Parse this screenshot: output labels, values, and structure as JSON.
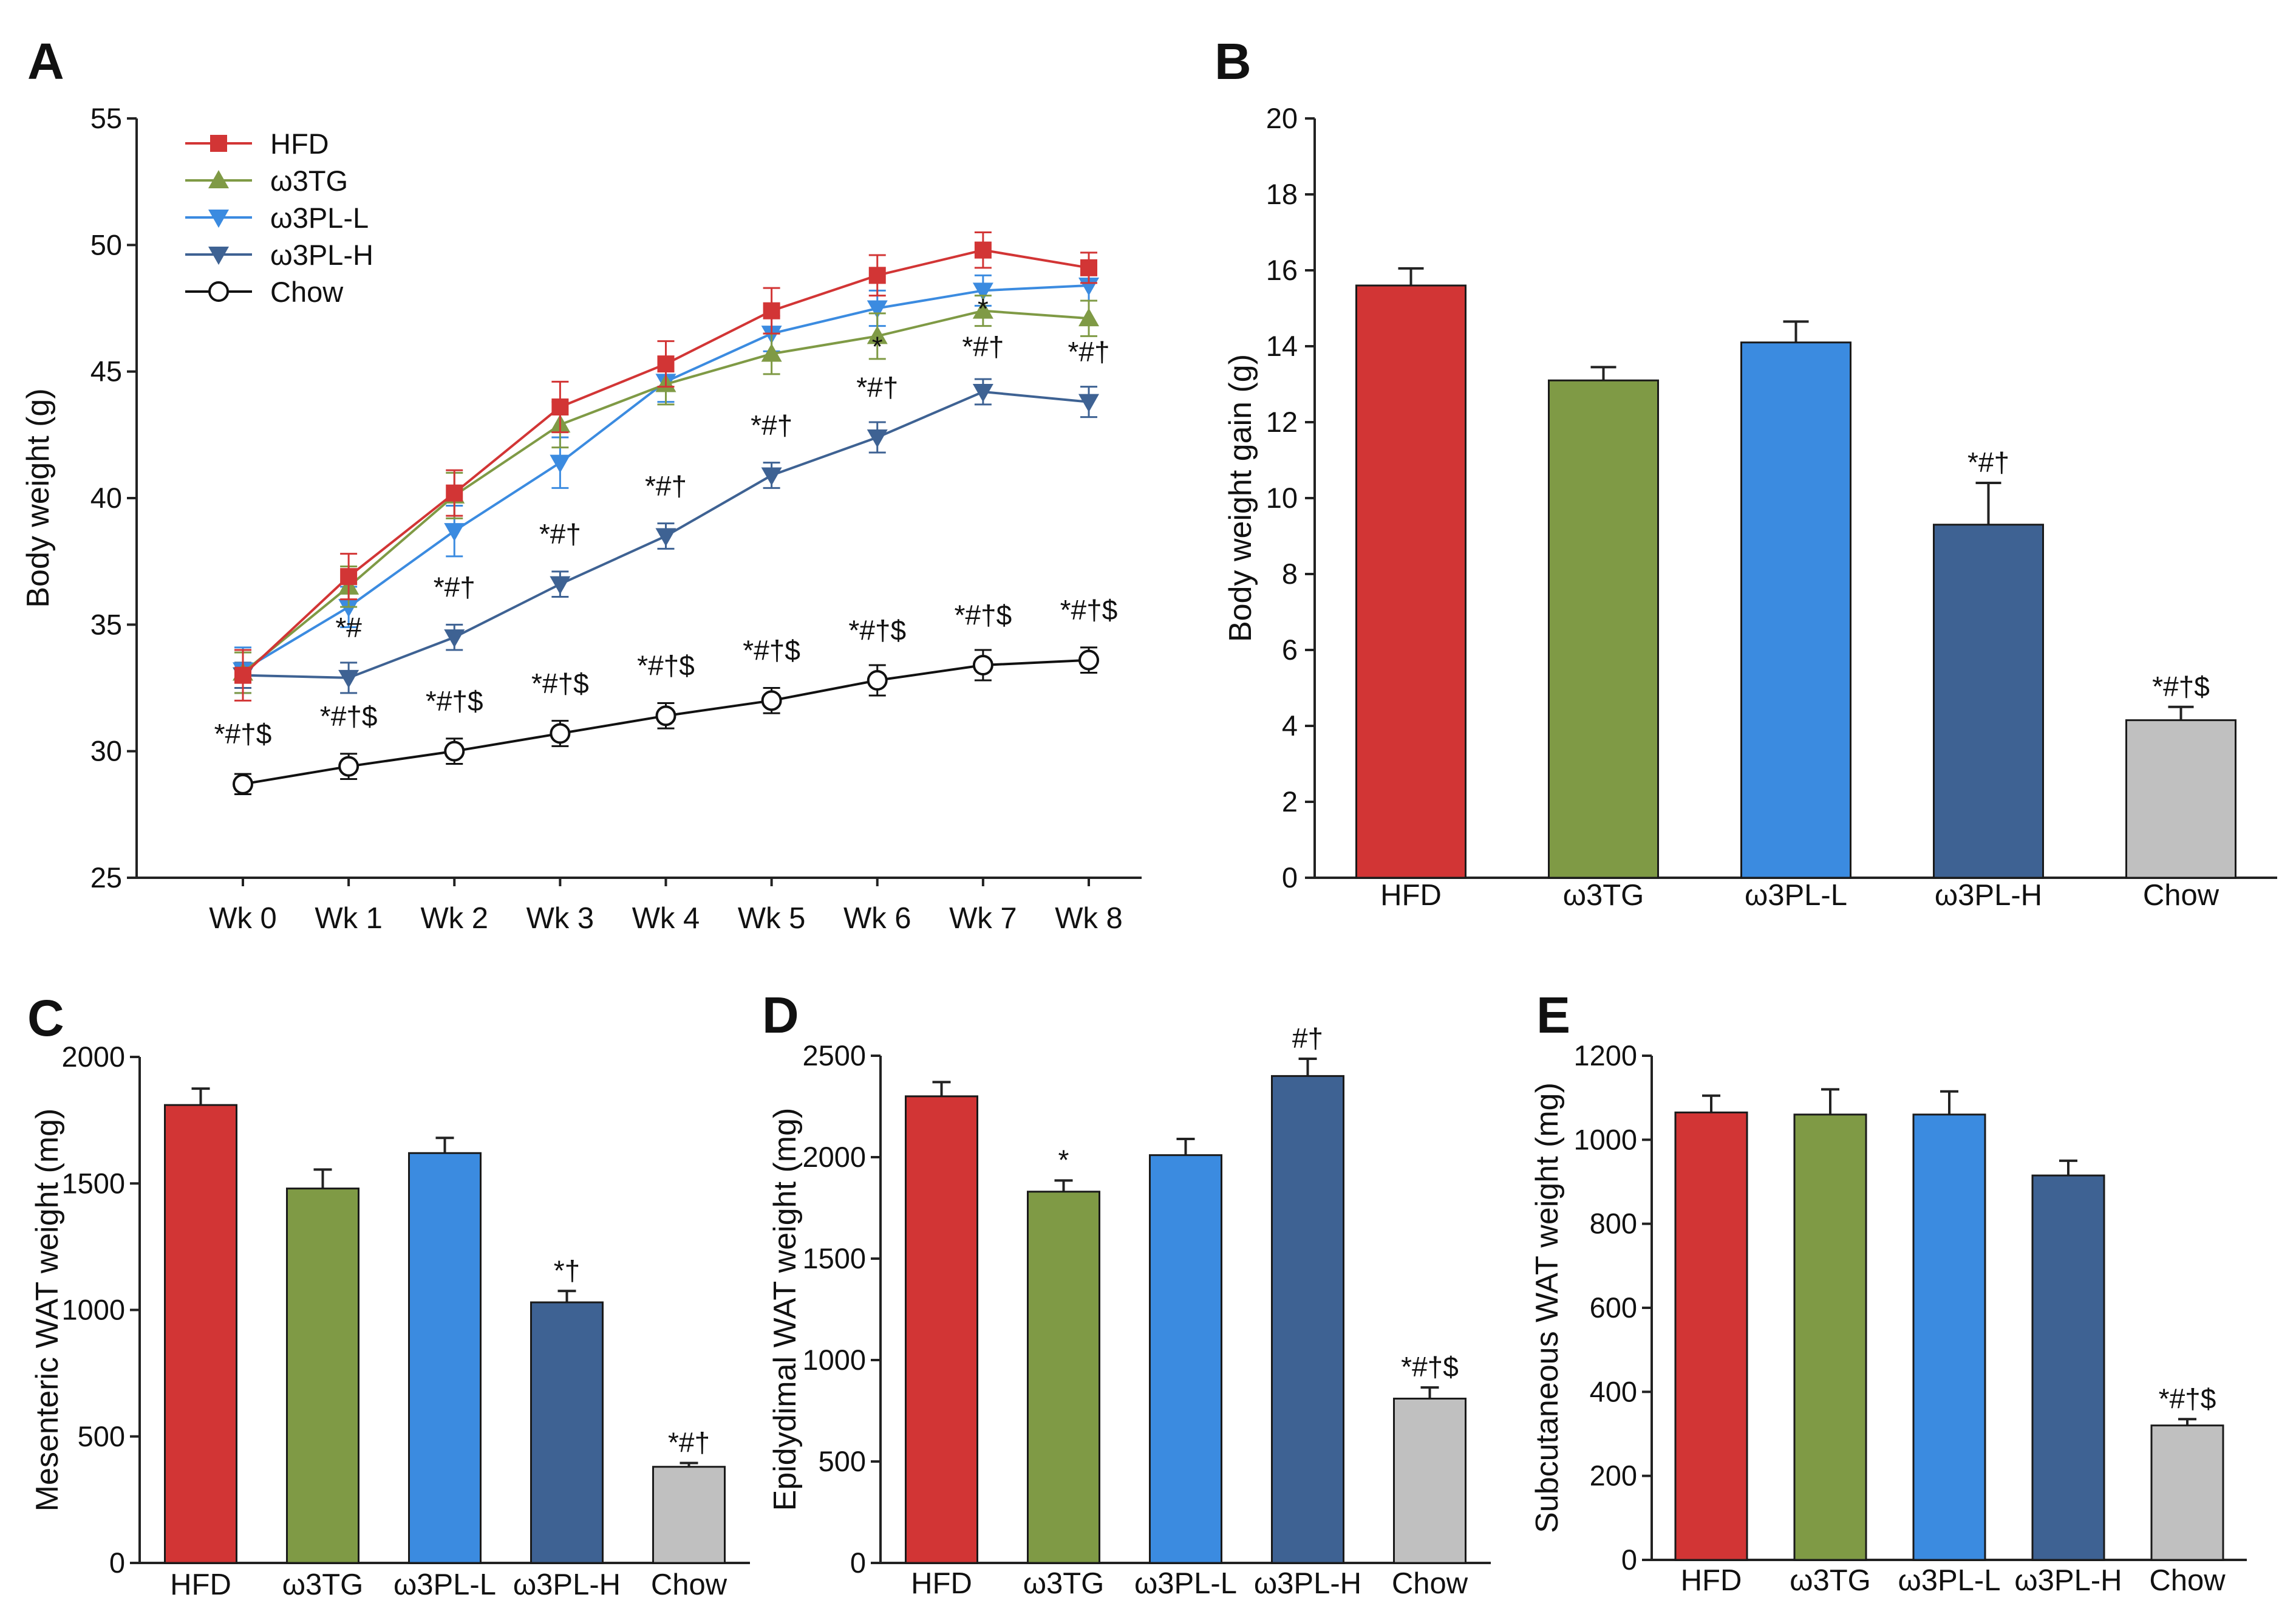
{
  "chart_data": [
    {
      "panel": "A",
      "type": "line",
      "xlabel": "",
      "ylabel": "Body weight (g)",
      "ylim": [
        25,
        55
      ],
      "yticks": [
        "25",
        "30",
        "35",
        "40",
        "45",
        "50",
        "55"
      ],
      "categories": [
        "Wk 0",
        "Wk 1",
        "Wk 2",
        "Wk 3",
        "Wk 4",
        "Wk 5",
        "Wk 6",
        "Wk 7",
        "Wk 8"
      ],
      "legend_position": "top-left",
      "series": [
        {
          "name": "HFD",
          "color": "#d23535",
          "marker": "square",
          "values": [
            33.0,
            36.9,
            40.2,
            43.6,
            45.3,
            47.4,
            48.8,
            49.8,
            49.1
          ],
          "errors": [
            1.0,
            0.9,
            0.9,
            1.0,
            0.9,
            0.9,
            0.8,
            0.7,
            0.6
          ]
        },
        {
          "name": "ω3TG",
          "color": "#7f9a45",
          "marker": "triangle-up",
          "values": [
            33.1,
            36.5,
            40.1,
            42.9,
            44.5,
            45.7,
            46.4,
            47.4,
            47.1
          ],
          "errors": [
            0.8,
            0.8,
            0.9,
            0.9,
            0.8,
            0.8,
            0.9,
            0.6,
            0.7
          ]
        },
        {
          "name": "ω3PL-L",
          "color": "#3b8be0",
          "marker": "triangle-down",
          "values": [
            33.2,
            35.7,
            38.7,
            41.4,
            44.6,
            46.5,
            47.5,
            48.2,
            48.4
          ],
          "errors": [
            0.9,
            0.8,
            1.0,
            1.0,
            0.8,
            0.7,
            0.7,
            0.6,
            0.6
          ]
        },
        {
          "name": "ω3PL-H",
          "color": "#3e6293",
          "marker": "triangle-down",
          "values": [
            33.0,
            32.9,
            34.5,
            36.6,
            38.5,
            40.9,
            42.4,
            44.2,
            43.8
          ],
          "errors": [
            0.5,
            0.6,
            0.5,
            0.5,
            0.5,
            0.5,
            0.6,
            0.5,
            0.6
          ]
        },
        {
          "name": "Chow",
          "color": "#111111",
          "marker": "circle-open",
          "values": [
            28.7,
            29.4,
            30.0,
            30.7,
            31.4,
            32.0,
            32.8,
            33.4,
            33.6
          ],
          "errors": [
            0.4,
            0.5,
            0.5,
            0.5,
            0.5,
            0.5,
            0.6,
            0.6,
            0.5
          ]
        }
      ],
      "annotations": [
        {
          "week": 0,
          "y": 30.3,
          "text": "*#†$"
        },
        {
          "week": 1,
          "y": 31.0,
          "text": "*#†$"
        },
        {
          "week": 2,
          "y": 31.6,
          "text": "*#†$"
        },
        {
          "week": 3,
          "y": 32.3,
          "text": "*#†$"
        },
        {
          "week": 4,
          "y": 33.0,
          "text": "*#†$"
        },
        {
          "week": 5,
          "y": 33.6,
          "text": "*#†$"
        },
        {
          "week": 6,
          "y": 34.4,
          "text": "*#†$"
        },
        {
          "week": 7,
          "y": 35.0,
          "text": "*#†$"
        },
        {
          "week": 8,
          "y": 35.2,
          "text": "*#†$"
        },
        {
          "week": 1,
          "y": 34.5,
          "text": "*#"
        },
        {
          "week": 2,
          "y": 36.1,
          "text": "*#†"
        },
        {
          "week": 3,
          "y": 38.2,
          "text": "*#†"
        },
        {
          "week": 4,
          "y": 40.1,
          "text": "*#†"
        },
        {
          "week": 5,
          "y": 42.5,
          "text": "*#†"
        },
        {
          "week": 6,
          "y": 44.0,
          "text": "*#†"
        },
        {
          "week": 7,
          "y": 45.6,
          "text": "*#†"
        },
        {
          "week": 8,
          "y": 45.4,
          "text": "*#†"
        },
        {
          "week": 6,
          "y": 45.6,
          "text": "*"
        },
        {
          "week": 7,
          "y": 47.1,
          "text": "*"
        }
      ]
    },
    {
      "panel": "B",
      "type": "bar",
      "xlabel": "",
      "ylabel": "Body weight gain (g)",
      "ylim": [
        0,
        20
      ],
      "yticks": [
        "0",
        "2",
        "4",
        "6",
        "8",
        "10",
        "12",
        "14",
        "16",
        "18",
        "20"
      ],
      "categories": [
        "HFD",
        "ω3TG",
        "ω3PL-L",
        "ω3PL-H",
        "Chow"
      ],
      "colors": [
        "#d23535",
        "#7f9a45",
        "#3b8be0",
        "#3e6293",
        "#c0c0c0"
      ],
      "values": [
        15.6,
        13.1,
        14.1,
        9.3,
        4.15
      ],
      "errors": [
        0.45,
        0.35,
        0.55,
        1.1,
        0.35
      ],
      "labels": [
        "",
        "",
        "",
        "*#†",
        "*#†$"
      ]
    },
    {
      "panel": "C",
      "type": "bar",
      "xlabel": "",
      "ylabel": "Mesenteric WAT weight (mg)",
      "ylim": [
        0,
        2000
      ],
      "yticks": [
        "0",
        "500",
        "1000",
        "1500",
        "2000"
      ],
      "categories": [
        "HFD",
        "ω3TG",
        "ω3PL-L",
        "ω3PL-H",
        "Chow"
      ],
      "colors": [
        "#d23535",
        "#7f9a45",
        "#3b8be0",
        "#3e6293",
        "#c0c0c0"
      ],
      "values": [
        1810,
        1480,
        1620,
        1030,
        380
      ],
      "errors": [
        65,
        75,
        60,
        45,
        15
      ],
      "labels": [
        "",
        "",
        "",
        "*†",
        "*#†"
      ]
    },
    {
      "panel": "D",
      "type": "bar",
      "xlabel": "",
      "ylabel": "Epidydimal WAT weight (mg)",
      "ylim": [
        0,
        2500
      ],
      "yticks": [
        "0",
        "500",
        "1000",
        "1500",
        "2000",
        "2500"
      ],
      "categories": [
        "HFD",
        "ω3TG",
        "ω3PL-L",
        "ω3PL-H",
        "Chow"
      ],
      "colors": [
        "#d23535",
        "#7f9a45",
        "#3b8be0",
        "#3e6293",
        "#c0c0c0"
      ],
      "values": [
        2300,
        1830,
        2010,
        2400,
        810
      ],
      "errors": [
        70,
        55,
        80,
        85,
        55
      ],
      "labels": [
        "",
        "*",
        "",
        "#†",
        "*#†$"
      ]
    },
    {
      "panel": "E",
      "type": "bar",
      "xlabel": "",
      "ylabel": "Subcutaneous WAT weight (mg)",
      "ylim": [
        0,
        1200
      ],
      "yticks": [
        "0",
        "200",
        "400",
        "600",
        "800",
        "1000",
        "1200"
      ],
      "categories": [
        "HFD",
        "ω3TG",
        "ω3PL-L",
        "ω3PL-H",
        "Chow"
      ],
      "colors": [
        "#d23535",
        "#7f9a45",
        "#3b8be0",
        "#3e6293",
        "#c0c0c0"
      ],
      "values": [
        1065,
        1060,
        1060,
        915,
        320
      ],
      "errors": [
        40,
        60,
        55,
        35,
        15
      ],
      "labels": [
        "",
        "",
        "",
        "",
        "*#†$"
      ]
    }
  ]
}
